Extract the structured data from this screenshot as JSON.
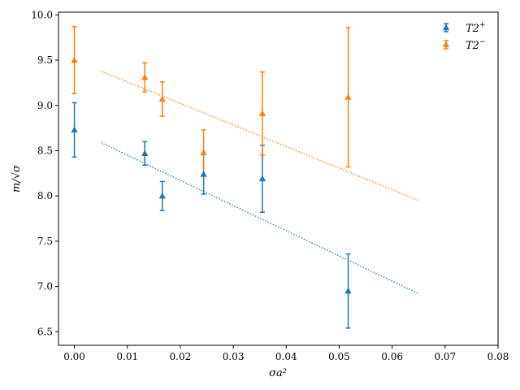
{
  "chart_data": {
    "type": "scatter",
    "xlabel": "σa²",
    "ylabel": "m/√σ",
    "xlim": [
      -0.003,
      0.08
    ],
    "ylim": [
      6.35,
      10.03
    ],
    "xticks": [
      0.0,
      0.01,
      0.02,
      0.03,
      0.04,
      0.05,
      0.06,
      0.07,
      0.08
    ],
    "xtick_labels": [
      "0.00",
      "0.01",
      "0.02",
      "0.03",
      "0.04",
      "0.05",
      "0.06",
      "0.07",
      "0.08"
    ],
    "yticks": [
      6.5,
      7.0,
      7.5,
      8.0,
      8.5,
      9.0,
      9.5,
      10.0
    ],
    "ytick_labels": [
      "6.5",
      "7.0",
      "7.5",
      "8.0",
      "8.5",
      "9.0",
      "9.5",
      "10.0"
    ],
    "grid": false,
    "legend_position": "top-right",
    "series": [
      {
        "name": "T2+",
        "legend_base": "T2",
        "legend_sup": "+",
        "color": "#1f77b4",
        "marker": "triangle",
        "x": [
          0.0,
          0.0133,
          0.0166,
          0.0244,
          0.0355,
          0.0517
        ],
        "y": [
          8.73,
          8.47,
          8.0,
          8.24,
          8.19,
          6.95
        ],
        "yerr": [
          0.3,
          0.13,
          0.16,
          0.22,
          0.37,
          0.41
        ],
        "fit": {
          "x": [
            0.005,
            0.065
          ],
          "y": [
            8.59,
            6.92
          ]
        }
      },
      {
        "name": "T2−",
        "legend_base": "T2",
        "legend_sup": "−",
        "color": "#ff7f0e",
        "marker": "triangle",
        "x": [
          0.0,
          0.0133,
          0.0166,
          0.0244,
          0.0355,
          0.0517
        ],
        "y": [
          9.5,
          9.31,
          9.07,
          8.48,
          8.91,
          9.09
        ],
        "yerr": [
          0.37,
          0.16,
          0.19,
          0.25,
          0.46,
          0.77
        ],
        "fit": {
          "x": [
            0.005,
            0.065
          ],
          "y": [
            9.38,
            7.95
          ]
        }
      }
    ]
  }
}
